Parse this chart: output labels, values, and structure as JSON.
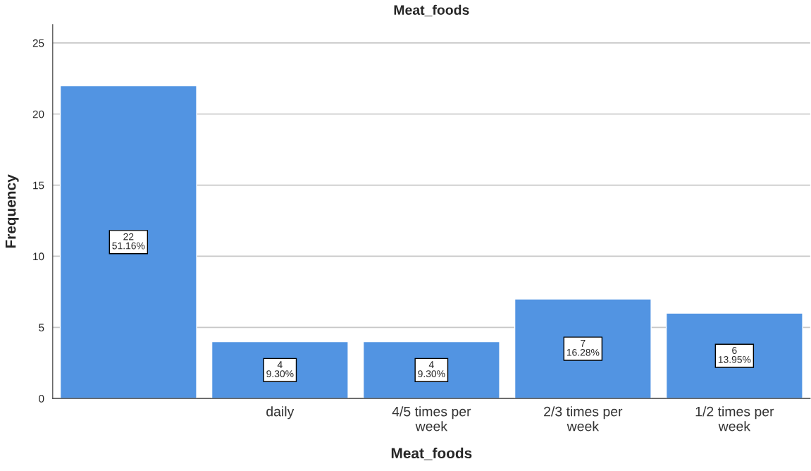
{
  "chart_data": {
    "type": "bar",
    "title": "Meat_foods",
    "xlabel": "Meat_foods",
    "ylabel": "Frequency",
    "categories": [
      null,
      "daily",
      "4/5 times per week",
      "2/3 times per week",
      "1/2 times per week"
    ],
    "values": [
      22,
      4,
      4,
      7,
      6
    ],
    "value_labels": [
      "22\n51.16%",
      "4\n9.30%",
      "4\n9.30%",
      "7\n16.28%",
      "6\n13.95%"
    ],
    "color": "#5294e2",
    "ylim": [
      0,
      26.3
    ],
    "yticks": [
      0,
      5,
      10,
      15,
      20,
      25
    ],
    "grid": "y",
    "legend": false
  }
}
